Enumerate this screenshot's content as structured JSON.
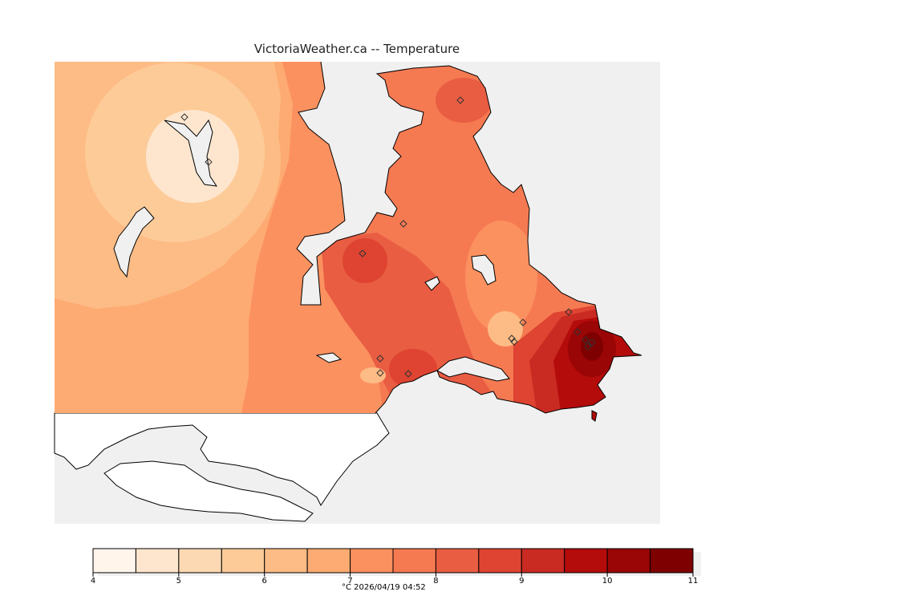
{
  "title": "VictoriaWeather.ca -- Temperature",
  "legend": {
    "min": 4,
    "max": 11,
    "step": 0.5,
    "tick_labels": [
      "4",
      "5",
      "6",
      "7",
      "8",
      "9",
      "10",
      "11"
    ],
    "colors": [
      "#fff5eb",
      "#fee6ce",
      "#fdd9b3",
      "#fdcb98",
      "#fdbc85",
      "#fdab72",
      "#fc9160",
      "#f57a52",
      "#e95d43",
      "#de4431",
      "#c92a22",
      "#b40b0b",
      "#9a0506",
      "#7e0000"
    ],
    "caption": "°C  2026/04/19 04:52"
  },
  "colors": {
    "water": "#f0f0f0",
    "land_outside": "#ffffff",
    "coast": "#000000"
  },
  "map": {
    "station_marker": "diamond-icon",
    "stations_count": 16
  }
}
